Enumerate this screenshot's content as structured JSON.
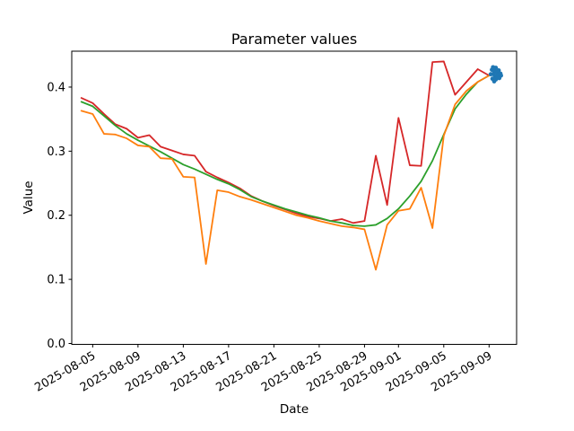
{
  "chart_data": {
    "type": "line",
    "title": "Parameter values",
    "xlabel": "Date",
    "ylabel": "Value",
    "grid": false,
    "legend": "none",
    "ylim": [
      0,
      0.456
    ],
    "xlim_days": [
      -0.849,
      38.43
    ],
    "y_ticks": [
      0,
      0.1,
      0.2,
      0.3,
      0.4
    ],
    "x_ticks": {
      "days": [
        1,
        5,
        9,
        13,
        17,
        21,
        25,
        28,
        32,
        36
      ],
      "labels": [
        "2025-08-05",
        "2025-08-09",
        "2025-08-13",
        "2025-08-17",
        "2025-08-21",
        "2025-08-25",
        "2025-08-29",
        "2025-09-01",
        "2025-09-05",
        "2025-09-09"
      ]
    },
    "x_dates": [
      "2025-08-04",
      "2025-08-05",
      "2025-08-06",
      "2025-08-07",
      "2025-08-08",
      "2025-08-09",
      "2025-08-10",
      "2025-08-11",
      "2025-08-12",
      "2025-08-13",
      "2025-08-14",
      "2025-08-15",
      "2025-08-16",
      "2025-08-17",
      "2025-08-18",
      "2025-08-19",
      "2025-08-20",
      "2025-08-21",
      "2025-08-22",
      "2025-08-23",
      "2025-08-24",
      "2025-08-25",
      "2025-08-26",
      "2025-08-27",
      "2025-08-28",
      "2025-08-29",
      "2025-08-30",
      "2025-08-31",
      "2025-09-01",
      "2025-09-02",
      "2025-09-03",
      "2025-09-04",
      "2025-09-05",
      "2025-09-06",
      "2025-09-07",
      "2025-09-08",
      "2025-09-09"
    ],
    "series": [
      {
        "name": "red-line",
        "color": "#d62728",
        "values": [
          0.383,
          0.375,
          0.358,
          0.342,
          0.335,
          0.321,
          0.325,
          0.307,
          0.301,
          0.295,
          0.293,
          0.268,
          0.259,
          0.251,
          0.242,
          0.23,
          0.222,
          0.215,
          0.209,
          0.203,
          0.198,
          0.195,
          0.191,
          0.194,
          0.188,
          0.191,
          0.293,
          0.216,
          0.352,
          0.278,
          0.277,
          0.439,
          0.44,
          0.388,
          0.408,
          0.428,
          0.418
        ]
      },
      {
        "name": "green-line",
        "color": "#2ca02c",
        "values": [
          0.377,
          0.37,
          0.355,
          0.34,
          0.327,
          0.317,
          0.308,
          0.299,
          0.289,
          0.279,
          0.272,
          0.264,
          0.256,
          0.249,
          0.24,
          0.229,
          0.222,
          0.216,
          0.21,
          0.205,
          0.2,
          0.196,
          0.191,
          0.188,
          0.184,
          0.183,
          0.185,
          0.195,
          0.21,
          0.23,
          0.253,
          0.285,
          0.326,
          0.366,
          0.389,
          0.408,
          0.418
        ]
      },
      {
        "name": "orange-line",
        "color": "#ff7f0e",
        "values": [
          0.363,
          0.358,
          0.327,
          0.326,
          0.32,
          0.309,
          0.307,
          0.289,
          0.288,
          0.26,
          0.259,
          0.124,
          0.239,
          0.236,
          0.229,
          0.224,
          0.218,
          0.212,
          0.206,
          0.2,
          0.196,
          0.191,
          0.187,
          0.183,
          0.181,
          0.178,
          0.115,
          0.185,
          0.207,
          0.21,
          0.243,
          0.18,
          0.324,
          0.373,
          0.394,
          0.408,
          0.418
        ]
      }
    ],
    "scatter": {
      "name": "blue-endpoint-cluster",
      "color": "#1f77b4",
      "points": [
        [
          36.15,
          0.42
        ],
        [
          36.25,
          0.427
        ],
        [
          36.3,
          0.413
        ],
        [
          36.35,
          0.431
        ],
        [
          36.4,
          0.42
        ],
        [
          36.45,
          0.409
        ],
        [
          36.45,
          0.422
        ],
        [
          36.5,
          0.426
        ],
        [
          36.55,
          0.416
        ],
        [
          36.6,
          0.43
        ],
        [
          36.6,
          0.412
        ],
        [
          36.7,
          0.423
        ],
        [
          36.7,
          0.415
        ],
        [
          36.75,
          0.418
        ],
        [
          36.85,
          0.426
        ],
        [
          36.9,
          0.414
        ],
        [
          37.0,
          0.421
        ],
        [
          37.05,
          0.418
        ]
      ]
    },
    "axis_color": "#000000",
    "background_color": "#ffffff"
  }
}
